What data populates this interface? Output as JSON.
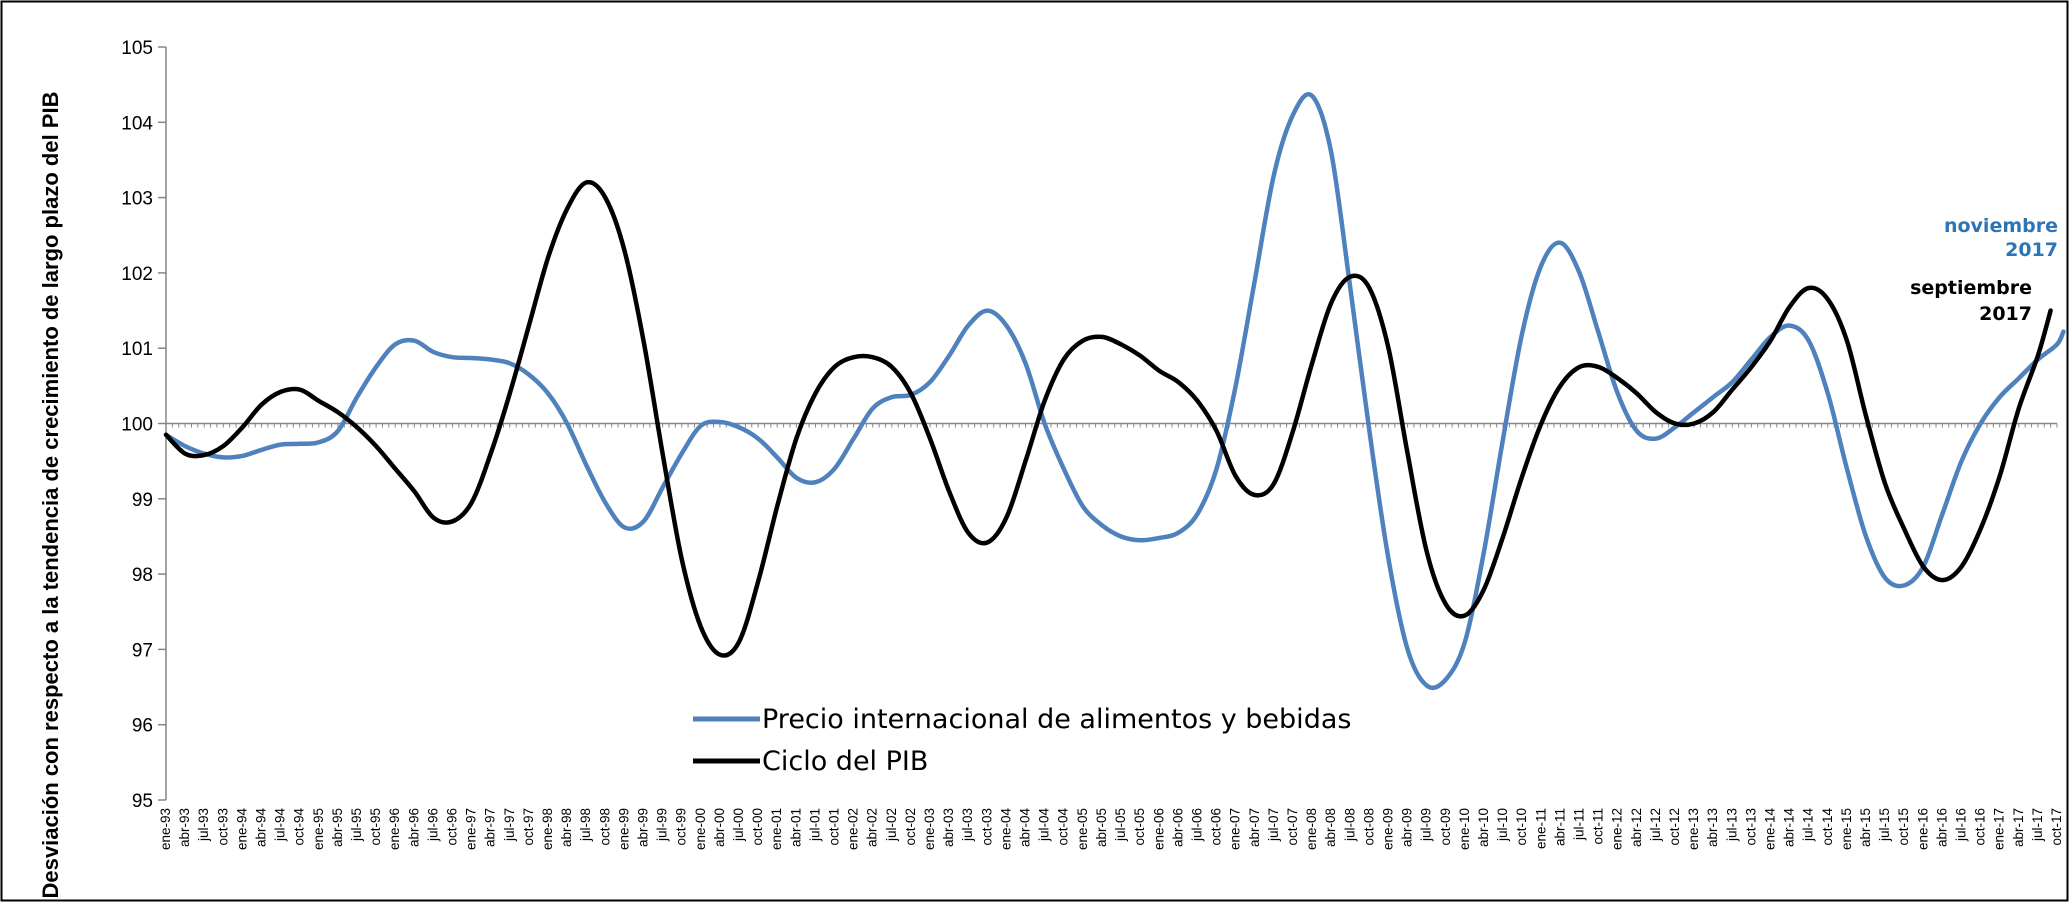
{
  "chart_data": {
    "type": "line",
    "ylabel": "Desviación con respecto a la tendencia de crecimiento de largo plazo del PIB",
    "xlabel": "",
    "ylim": [
      95,
      105
    ],
    "yticks": [
      "95",
      "96",
      "97",
      "98",
      "99",
      "100",
      "101",
      "102",
      "103",
      "104",
      "105"
    ],
    "grid": false,
    "legend_position": "bottom-center",
    "xticks": [
      "ene-93",
      "abr-93",
      "jul-93",
      "oct-93",
      "ene-94",
      "abr-94",
      "jul-94",
      "oct-94",
      "ene-95",
      "abr-95",
      "jul-95",
      "oct-95",
      "ene-96",
      "abr-96",
      "jul-96",
      "oct-96",
      "ene-97",
      "abr-97",
      "jul-97",
      "oct-97",
      "ene-98",
      "abr-98",
      "jul-98",
      "oct-98",
      "ene-99",
      "abr-99",
      "jul-99",
      "oct-99",
      "ene-00",
      "abr-00",
      "jul-00",
      "oct-00",
      "ene-01",
      "abr-01",
      "jul-01",
      "oct-01",
      "ene-02",
      "abr-02",
      "jul-02",
      "oct-02",
      "ene-03",
      "abr-03",
      "jul-03",
      "oct-03",
      "ene-04",
      "abr-04",
      "jul-04",
      "oct-04",
      "ene-05",
      "abr-05",
      "jul-05",
      "oct-05",
      "ene-06",
      "abr-06",
      "jul-06",
      "oct-06",
      "ene-07",
      "abr-07",
      "jul-07",
      "oct-07",
      "ene-08",
      "abr-08",
      "jul-08",
      "oct-08",
      "ene-09",
      "abr-09",
      "jul-09",
      "oct-09",
      "ene-10",
      "abr-10",
      "jul-10",
      "oct-10",
      "ene-11",
      "abr-11",
      "jul-11",
      "oct-11",
      "ene-12",
      "abr-12",
      "jul-12",
      "oct-12",
      "ene-13",
      "abr-13",
      "jul-13",
      "oct-13",
      "ene-14",
      "abr-14",
      "jul-14",
      "oct-14",
      "ene-15",
      "abr-15",
      "jul-15",
      "oct-15",
      "ene-16",
      "abr-16",
      "jul-16",
      "oct-16",
      "ene-17",
      "abr-17",
      "jul-17",
      "oct-17"
    ],
    "x_start": "ene-93",
    "series": [
      {
        "name": "Precio internacional de alimentos y bebidas",
        "color": "#4f81bd",
        "points": [
          [
            "ene-93",
            99.85
          ],
          [
            "abr-93",
            99.7
          ],
          [
            "jul-93",
            99.6
          ],
          [
            "oct-93",
            99.55
          ],
          [
            "ene-94",
            99.57
          ],
          [
            "abr-94",
            99.65
          ],
          [
            "jul-94",
            99.72
          ],
          [
            "oct-94",
            99.73
          ],
          [
            "ene-95",
            99.75
          ],
          [
            "abr-95",
            99.9
          ],
          [
            "jul-95",
            100.35
          ],
          [
            "oct-95",
            100.75
          ],
          [
            "ene-96",
            101.05
          ],
          [
            "abr-96",
            101.1
          ],
          [
            "jul-96",
            100.95
          ],
          [
            "oct-96",
            100.88
          ],
          [
            "ene-97",
            100.87
          ],
          [
            "abr-97",
            100.85
          ],
          [
            "jul-97",
            100.8
          ],
          [
            "oct-97",
            100.65
          ],
          [
            "ene-98",
            100.4
          ],
          [
            "abr-98",
            100.0
          ],
          [
            "jul-98",
            99.45
          ],
          [
            "oct-98",
            98.95
          ],
          [
            "ene-99",
            98.62
          ],
          [
            "abr-99",
            98.7
          ],
          [
            "jul-99",
            99.15
          ],
          [
            "oct-99",
            99.6
          ],
          [
            "ene-00",
            99.97
          ],
          [
            "abr-00",
            100.02
          ],
          [
            "jul-00",
            99.95
          ],
          [
            "oct-00",
            99.8
          ],
          [
            "ene-01",
            99.55
          ],
          [
            "abr-01",
            99.28
          ],
          [
            "jul-01",
            99.22
          ],
          [
            "oct-01",
            99.4
          ],
          [
            "ene-02",
            99.8
          ],
          [
            "abr-02",
            100.2
          ],
          [
            "jul-02",
            100.35
          ],
          [
            "oct-02",
            100.38
          ],
          [
            "ene-03",
            100.55
          ],
          [
            "abr-03",
            100.9
          ],
          [
            "jul-03",
            101.3
          ],
          [
            "oct-03",
            101.5
          ],
          [
            "ene-04",
            101.3
          ],
          [
            "abr-04",
            100.8
          ],
          [
            "jul-04",
            100.0
          ],
          [
            "oct-04",
            99.4
          ],
          [
            "ene-05",
            98.9
          ],
          [
            "abr-05",
            98.65
          ],
          [
            "jul-05",
            98.5
          ],
          [
            "oct-05",
            98.45
          ],
          [
            "ene-06",
            98.48
          ],
          [
            "abr-06",
            98.55
          ],
          [
            "jul-06",
            98.8
          ],
          [
            "oct-06",
            99.4
          ],
          [
            "ene-07",
            100.5
          ],
          [
            "abr-07",
            101.9
          ],
          [
            "jul-07",
            103.3
          ],
          [
            "oct-07",
            104.1
          ],
          [
            "ene-08",
            104.35
          ],
          [
            "abr-08",
            103.6
          ],
          [
            "jul-08",
            101.8
          ],
          [
            "oct-08",
            99.9
          ],
          [
            "ene-09",
            98.2
          ],
          [
            "abr-09",
            97.0
          ],
          [
            "jul-09",
            96.52
          ],
          [
            "oct-09",
            96.6
          ],
          [
            "ene-10",
            97.1
          ],
          [
            "abr-10",
            98.3
          ],
          [
            "jul-10",
            99.8
          ],
          [
            "oct-10",
            101.2
          ],
          [
            "ene-11",
            102.1
          ],
          [
            "abr-11",
            102.4
          ],
          [
            "jul-11",
            102.0
          ],
          [
            "oct-11",
            101.2
          ],
          [
            "ene-12",
            100.4
          ],
          [
            "abr-12",
            99.9
          ],
          [
            "jul-12",
            99.8
          ],
          [
            "oct-12",
            99.95
          ],
          [
            "ene-13",
            100.15
          ],
          [
            "abr-13",
            100.35
          ],
          [
            "jul-13",
            100.55
          ],
          [
            "oct-13",
            100.85
          ],
          [
            "ene-14",
            101.15
          ],
          [
            "abr-14",
            101.3
          ],
          [
            "jul-14",
            101.1
          ],
          [
            "oct-14",
            100.4
          ],
          [
            "ene-15",
            99.4
          ],
          [
            "abr-15",
            98.5
          ],
          [
            "jul-15",
            97.95
          ],
          [
            "oct-15",
            97.85
          ],
          [
            "ene-16",
            98.1
          ],
          [
            "abr-16",
            98.8
          ],
          [
            "jul-16",
            99.5
          ],
          [
            "oct-16",
            100.0
          ],
          [
            "ene-17",
            100.35
          ],
          [
            "abr-17",
            100.6
          ],
          [
            "jul-17",
            100.85
          ],
          [
            "oct-17",
            101.05
          ],
          [
            "nov-17",
            101.22
          ]
        ]
      },
      {
        "name": "Ciclo del PIB",
        "color": "#000000",
        "points": [
          [
            "ene-93",
            99.85
          ],
          [
            "abr-93",
            99.6
          ],
          [
            "jul-93",
            99.58
          ],
          [
            "oct-93",
            99.7
          ],
          [
            "ene-94",
            99.95
          ],
          [
            "abr-94",
            100.25
          ],
          [
            "jul-94",
            100.42
          ],
          [
            "oct-94",
            100.45
          ],
          [
            "ene-95",
            100.3
          ],
          [
            "abr-95",
            100.15
          ],
          [
            "jul-95",
            99.95
          ],
          [
            "oct-95",
            99.7
          ],
          [
            "ene-96",
            99.4
          ],
          [
            "abr-96",
            99.1
          ],
          [
            "jul-96",
            98.75
          ],
          [
            "oct-96",
            98.7
          ],
          [
            "ene-97",
            98.95
          ],
          [
            "abr-97",
            99.6
          ],
          [
            "jul-97",
            100.4
          ],
          [
            "oct-97",
            101.3
          ],
          [
            "ene-98",
            102.2
          ],
          [
            "abr-98",
            102.85
          ],
          [
            "jul-98",
            103.2
          ],
          [
            "oct-98",
            103.0
          ],
          [
            "ene-99",
            102.3
          ],
          [
            "abr-99",
            101.1
          ],
          [
            "jul-99",
            99.6
          ],
          [
            "oct-99",
            98.2
          ],
          [
            "ene-00",
            97.3
          ],
          [
            "abr-00",
            96.93
          ],
          [
            "jul-00",
            97.1
          ],
          [
            "oct-00",
            97.9
          ],
          [
            "ene-01",
            98.9
          ],
          [
            "abr-01",
            99.8
          ],
          [
            "jul-01",
            100.4
          ],
          [
            "oct-01",
            100.75
          ],
          [
            "ene-02",
            100.88
          ],
          [
            "abr-02",
            100.88
          ],
          [
            "jul-02",
            100.75
          ],
          [
            "oct-02",
            100.4
          ],
          [
            "ene-03",
            99.8
          ],
          [
            "abr-03",
            99.1
          ],
          [
            "jul-03",
            98.55
          ],
          [
            "oct-03",
            98.42
          ],
          [
            "ene-04",
            98.75
          ],
          [
            "abr-04",
            99.5
          ],
          [
            "jul-04",
            100.3
          ],
          [
            "oct-04",
            100.85
          ],
          [
            "ene-05",
            101.1
          ],
          [
            "abr-05",
            101.15
          ],
          [
            "jul-05",
            101.05
          ],
          [
            "oct-05",
            100.9
          ],
          [
            "ene-06",
            100.7
          ],
          [
            "abr-06",
            100.55
          ],
          [
            "jul-06",
            100.3
          ],
          [
            "oct-06",
            99.9
          ],
          [
            "ene-07",
            99.3
          ],
          [
            "abr-07",
            99.05
          ],
          [
            "jul-07",
            99.2
          ],
          [
            "oct-07",
            99.9
          ],
          [
            "ene-08",
            100.8
          ],
          [
            "abr-08",
            101.6
          ],
          [
            "jul-08",
            101.95
          ],
          [
            "oct-08",
            101.8
          ],
          [
            "ene-09",
            101.0
          ],
          [
            "abr-09",
            99.6
          ],
          [
            "jul-09",
            98.3
          ],
          [
            "oct-09",
            97.6
          ],
          [
            "ene-10",
            97.45
          ],
          [
            "abr-10",
            97.8
          ],
          [
            "jul-10",
            98.5
          ],
          [
            "oct-10",
            99.3
          ],
          [
            "ene-11",
            100.0
          ],
          [
            "abr-11",
            100.5
          ],
          [
            "jul-11",
            100.75
          ],
          [
            "oct-11",
            100.75
          ],
          [
            "ene-12",
            100.6
          ],
          [
            "abr-12",
            100.4
          ],
          [
            "jul-12",
            100.15
          ],
          [
            "oct-12",
            100.0
          ],
          [
            "ene-13",
            100.0
          ],
          [
            "abr-13",
            100.15
          ],
          [
            "jul-13",
            100.45
          ],
          [
            "oct-13",
            100.75
          ],
          [
            "ene-14",
            101.1
          ],
          [
            "abr-14",
            101.55
          ],
          [
            "jul-14",
            101.8
          ],
          [
            "oct-14",
            101.65
          ],
          [
            "ene-15",
            101.1
          ],
          [
            "abr-15",
            100.1
          ],
          [
            "jul-15",
            99.2
          ],
          [
            "oct-15",
            98.6
          ],
          [
            "ene-16",
            98.1
          ],
          [
            "abr-16",
            97.92
          ],
          [
            "jul-16",
            98.1
          ],
          [
            "oct-16",
            98.6
          ],
          [
            "ene-17",
            99.3
          ],
          [
            "abr-17",
            100.2
          ],
          [
            "jul-17",
            100.9
          ],
          [
            "sep-17",
            101.5
          ]
        ]
      }
    ],
    "annotations": [
      {
        "text_1": "noviembre",
        "text_2": "2017",
        "color": "#2e75b6"
      },
      {
        "text_1": "septiembre",
        "text_2": "2017",
        "color": "#000000"
      }
    ]
  }
}
